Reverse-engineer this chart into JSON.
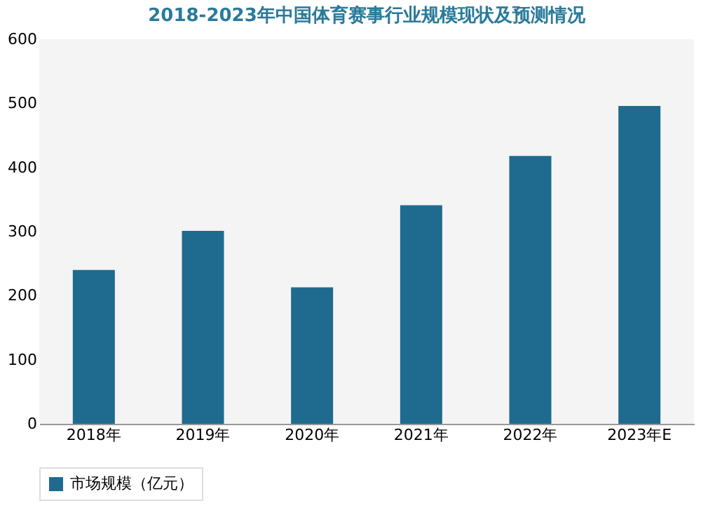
{
  "chart_data": {
    "type": "bar",
    "title": "2018-2023年中国体育赛事行业规模现状及预测情况",
    "categories": [
      "2018年",
      "2019年",
      "2020年",
      "2021年",
      "2022年",
      "2023年E"
    ],
    "series": [
      {
        "name": "市场规模（亿元）",
        "color": "#1e6b8f",
        "values": [
          240,
          301,
          213,
          341,
          418,
          496
        ]
      }
    ],
    "ylim": [
      0,
      600
    ],
    "yticks": [
      0,
      100,
      200,
      300,
      400,
      500,
      600
    ],
    "grid": false,
    "legend": "bottom"
  }
}
